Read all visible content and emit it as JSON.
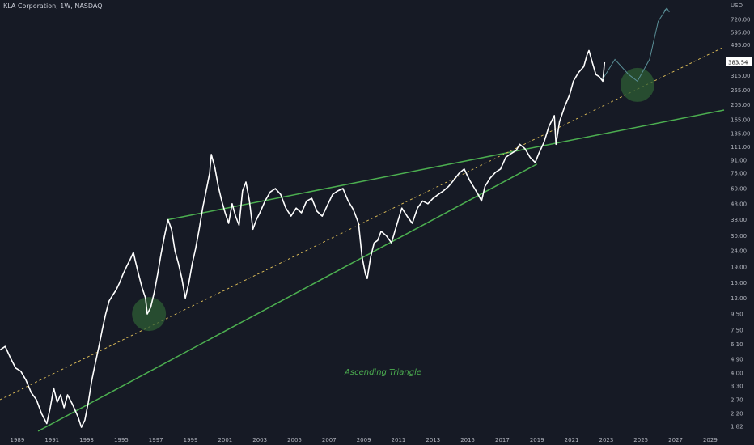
{
  "header": {
    "title": "KLA Corporation, 1W, NASDAQ"
  },
  "colors": {
    "background": "#161a25",
    "price_line": "#ffffff",
    "trendline": "#4caf50",
    "dashed_line": "#e6c45a",
    "highlight_fill": "#2e5e34",
    "projection": "#5a8f97",
    "axis_text": "#b2b5be"
  },
  "chart_data": {
    "type": "line",
    "title": "KLA Corporation, 1W, NASDAQ",
    "yscale": "log",
    "ylim": [
      1.6,
      870
    ],
    "xlim": [
      1988.0,
      2029.8
    ],
    "currency_label": "USD",
    "y_ticks": [
      "720.00",
      "595.00",
      "495.00",
      "315.00",
      "255.00",
      "205.00",
      "165.00",
      "135.00",
      "111.00",
      "91.00",
      "75.00",
      "60.00",
      "48.00",
      "38.00",
      "30.00",
      "24.00",
      "19.00",
      "15.00",
      "12.00",
      "9.50",
      "7.50",
      "6.10",
      "4.90",
      "4.00",
      "3.30",
      "2.70",
      "2.20",
      "1.82"
    ],
    "x_ticks": [
      "1989",
      "1991",
      "1993",
      "1995",
      "1997",
      "1999",
      "2001",
      "2003",
      "2005",
      "2007",
      "2009",
      "2011",
      "2013",
      "2015",
      "2017",
      "2019",
      "2021",
      "2023",
      "2025",
      "2027",
      "2029"
    ],
    "current_price": {
      "label": "383.54",
      "value": 383.54
    },
    "series": [
      {
        "values": [
          [
            1988.0,
            5.6
          ],
          [
            1988.3,
            5.9
          ],
          [
            1988.6,
            5.0
          ],
          [
            1988.9,
            4.3
          ],
          [
            1989.2,
            4.1
          ],
          [
            1989.5,
            3.6
          ],
          [
            1989.8,
            3.0
          ],
          [
            1990.1,
            2.7
          ],
          [
            1990.4,
            2.2
          ],
          [
            1990.7,
            1.9
          ],
          [
            1990.9,
            2.4
          ],
          [
            1991.1,
            3.2
          ],
          [
            1991.3,
            2.6
          ],
          [
            1991.5,
            2.9
          ],
          [
            1991.7,
            2.4
          ],
          [
            1991.9,
            2.9
          ],
          [
            1992.2,
            2.5
          ],
          [
            1992.5,
            2.1
          ],
          [
            1992.7,
            1.8
          ],
          [
            1992.9,
            2.0
          ],
          [
            1993.1,
            2.6
          ],
          [
            1993.3,
            3.6
          ],
          [
            1993.5,
            4.6
          ],
          [
            1993.7,
            5.8
          ],
          [
            1993.9,
            7.5
          ],
          [
            1994.1,
            9.5
          ],
          [
            1994.3,
            11.5
          ],
          [
            1994.5,
            12.5
          ],
          [
            1994.7,
            13.5
          ],
          [
            1994.9,
            15.0
          ],
          [
            1995.1,
            17.0
          ],
          [
            1995.3,
            19.0
          ],
          [
            1995.5,
            21.0
          ],
          [
            1995.7,
            23.5
          ],
          [
            1995.8,
            21.0
          ],
          [
            1996.0,
            17.0
          ],
          [
            1996.2,
            14.0
          ],
          [
            1996.4,
            12.0
          ],
          [
            1996.5,
            9.5
          ],
          [
            1996.7,
            10.5
          ],
          [
            1996.9,
            13.0
          ],
          [
            1997.1,
            17.0
          ],
          [
            1997.3,
            23.0
          ],
          [
            1997.5,
            30.0
          ],
          [
            1997.7,
            38.0
          ],
          [
            1997.9,
            33.0
          ],
          [
            1998.1,
            24.0
          ],
          [
            1998.3,
            20.0
          ],
          [
            1998.5,
            16.0
          ],
          [
            1998.7,
            12.0
          ],
          [
            1998.9,
            15.0
          ],
          [
            1999.1,
            20.0
          ],
          [
            1999.3,
            25.0
          ],
          [
            1999.5,
            33.0
          ],
          [
            1999.7,
            45.0
          ],
          [
            1999.9,
            58.0
          ],
          [
            2000.1,
            75.0
          ],
          [
            2000.2,
            99.0
          ],
          [
            2000.4,
            82.0
          ],
          [
            2000.6,
            62.0
          ],
          [
            2000.8,
            50.0
          ],
          [
            2001.0,
            42.0
          ],
          [
            2001.2,
            36.0
          ],
          [
            2001.4,
            48.0
          ],
          [
            2001.6,
            40.0
          ],
          [
            2001.8,
            35.0
          ],
          [
            2002.0,
            58.0
          ],
          [
            2002.2,
            66.0
          ],
          [
            2002.4,
            50.0
          ],
          [
            2002.6,
            33.0
          ],
          [
            2002.8,
            38.0
          ],
          [
            2003.0,
            42.0
          ],
          [
            2003.3,
            50.0
          ],
          [
            2003.6,
            57.0
          ],
          [
            2003.9,
            60.0
          ],
          [
            2004.2,
            55.0
          ],
          [
            2004.5,
            45.0
          ],
          [
            2004.8,
            40.0
          ],
          [
            2005.1,
            45.0
          ],
          [
            2005.4,
            42.0
          ],
          [
            2005.7,
            50.0
          ],
          [
            2006.0,
            52.0
          ],
          [
            2006.3,
            43.0
          ],
          [
            2006.6,
            40.0
          ],
          [
            2006.9,
            47.0
          ],
          [
            2007.2,
            55.0
          ],
          [
            2007.5,
            58.0
          ],
          [
            2007.8,
            60.0
          ],
          [
            2008.1,
            50.0
          ],
          [
            2008.4,
            44.0
          ],
          [
            2008.7,
            36.0
          ],
          [
            2008.9,
            22.0
          ],
          [
            2009.1,
            17.0
          ],
          [
            2009.2,
            16.0
          ],
          [
            2009.4,
            22.0
          ],
          [
            2009.6,
            27.0
          ],
          [
            2009.8,
            28.0
          ],
          [
            2010.0,
            32.0
          ],
          [
            2010.3,
            30.0
          ],
          [
            2010.6,
            27.0
          ],
          [
            2010.9,
            35.0
          ],
          [
            2011.2,
            45.0
          ],
          [
            2011.5,
            40.0
          ],
          [
            2011.8,
            36.0
          ],
          [
            2012.1,
            45.0
          ],
          [
            2012.4,
            50.0
          ],
          [
            2012.7,
            48.0
          ],
          [
            2013.0,
            52.0
          ],
          [
            2013.3,
            55.0
          ],
          [
            2013.6,
            58.0
          ],
          [
            2013.9,
            62.0
          ],
          [
            2014.2,
            68.0
          ],
          [
            2014.5,
            75.0
          ],
          [
            2014.8,
            80.0
          ],
          [
            2015.1,
            68.0
          ],
          [
            2015.4,
            60.0
          ],
          [
            2015.6,
            55.0
          ],
          [
            2015.8,
            50.0
          ],
          [
            2016.0,
            62.0
          ],
          [
            2016.3,
            70.0
          ],
          [
            2016.6,
            76.0
          ],
          [
            2016.9,
            80.0
          ],
          [
            2017.2,
            95.0
          ],
          [
            2017.5,
            100.0
          ],
          [
            2017.8,
            105.0
          ],
          [
            2018.0,
            115.0
          ],
          [
            2018.3,
            108.0
          ],
          [
            2018.6,
            95.0
          ],
          [
            2018.9,
            88.0
          ],
          [
            2019.1,
            100.0
          ],
          [
            2019.4,
            118.0
          ],
          [
            2019.7,
            150.0
          ],
          [
            2020.0,
            175.0
          ],
          [
            2020.1,
            115.0
          ],
          [
            2020.3,
            160.0
          ],
          [
            2020.6,
            200.0
          ],
          [
            2020.9,
            240.0
          ],
          [
            2021.1,
            290.0
          ],
          [
            2021.4,
            330.0
          ],
          [
            2021.7,
            360.0
          ],
          [
            2021.9,
            430.0
          ],
          [
            2022.0,
            455.0
          ],
          [
            2022.2,
            380.0
          ],
          [
            2022.4,
            320.0
          ],
          [
            2022.6,
            310.0
          ],
          [
            2022.8,
            290.0
          ],
          [
            2022.9,
            383.54
          ]
        ]
      }
    ],
    "lines": [
      {
        "name": "upper-trendline",
        "style": "solid",
        "from": [
          1997.7,
          38.0
        ],
        "to": [
          2029.8,
          190.0
        ]
      },
      {
        "name": "lower-trendline",
        "style": "solid",
        "from": [
          1990.2,
          1.7
        ],
        "to": [
          2019.0,
          86.0
        ]
      },
      {
        "name": "dashed-trendline",
        "style": "dashed",
        "from": [
          1988.0,
          2.7
        ],
        "to": [
          2029.8,
          480.0
        ]
      }
    ],
    "highlights": [
      {
        "name": "support-circle-1996",
        "x": 1996.6,
        "y": 9.5
      },
      {
        "name": "target-circle-2024",
        "x": 2024.8,
        "y": 275.0
      }
    ],
    "projection_path": [
      [
        2022.8,
        300.0
      ],
      [
        2023.5,
        400.0
      ],
      [
        2024.3,
        320.0
      ],
      [
        2024.8,
        290.0
      ],
      [
        2025.5,
        400.0
      ],
      [
        2026.0,
        700.0
      ],
      [
        2026.5,
        850.0
      ]
    ],
    "annotations": [
      {
        "text": "Ascending Triangle",
        "x": 2010.0,
        "y": 4.1
      }
    ]
  }
}
